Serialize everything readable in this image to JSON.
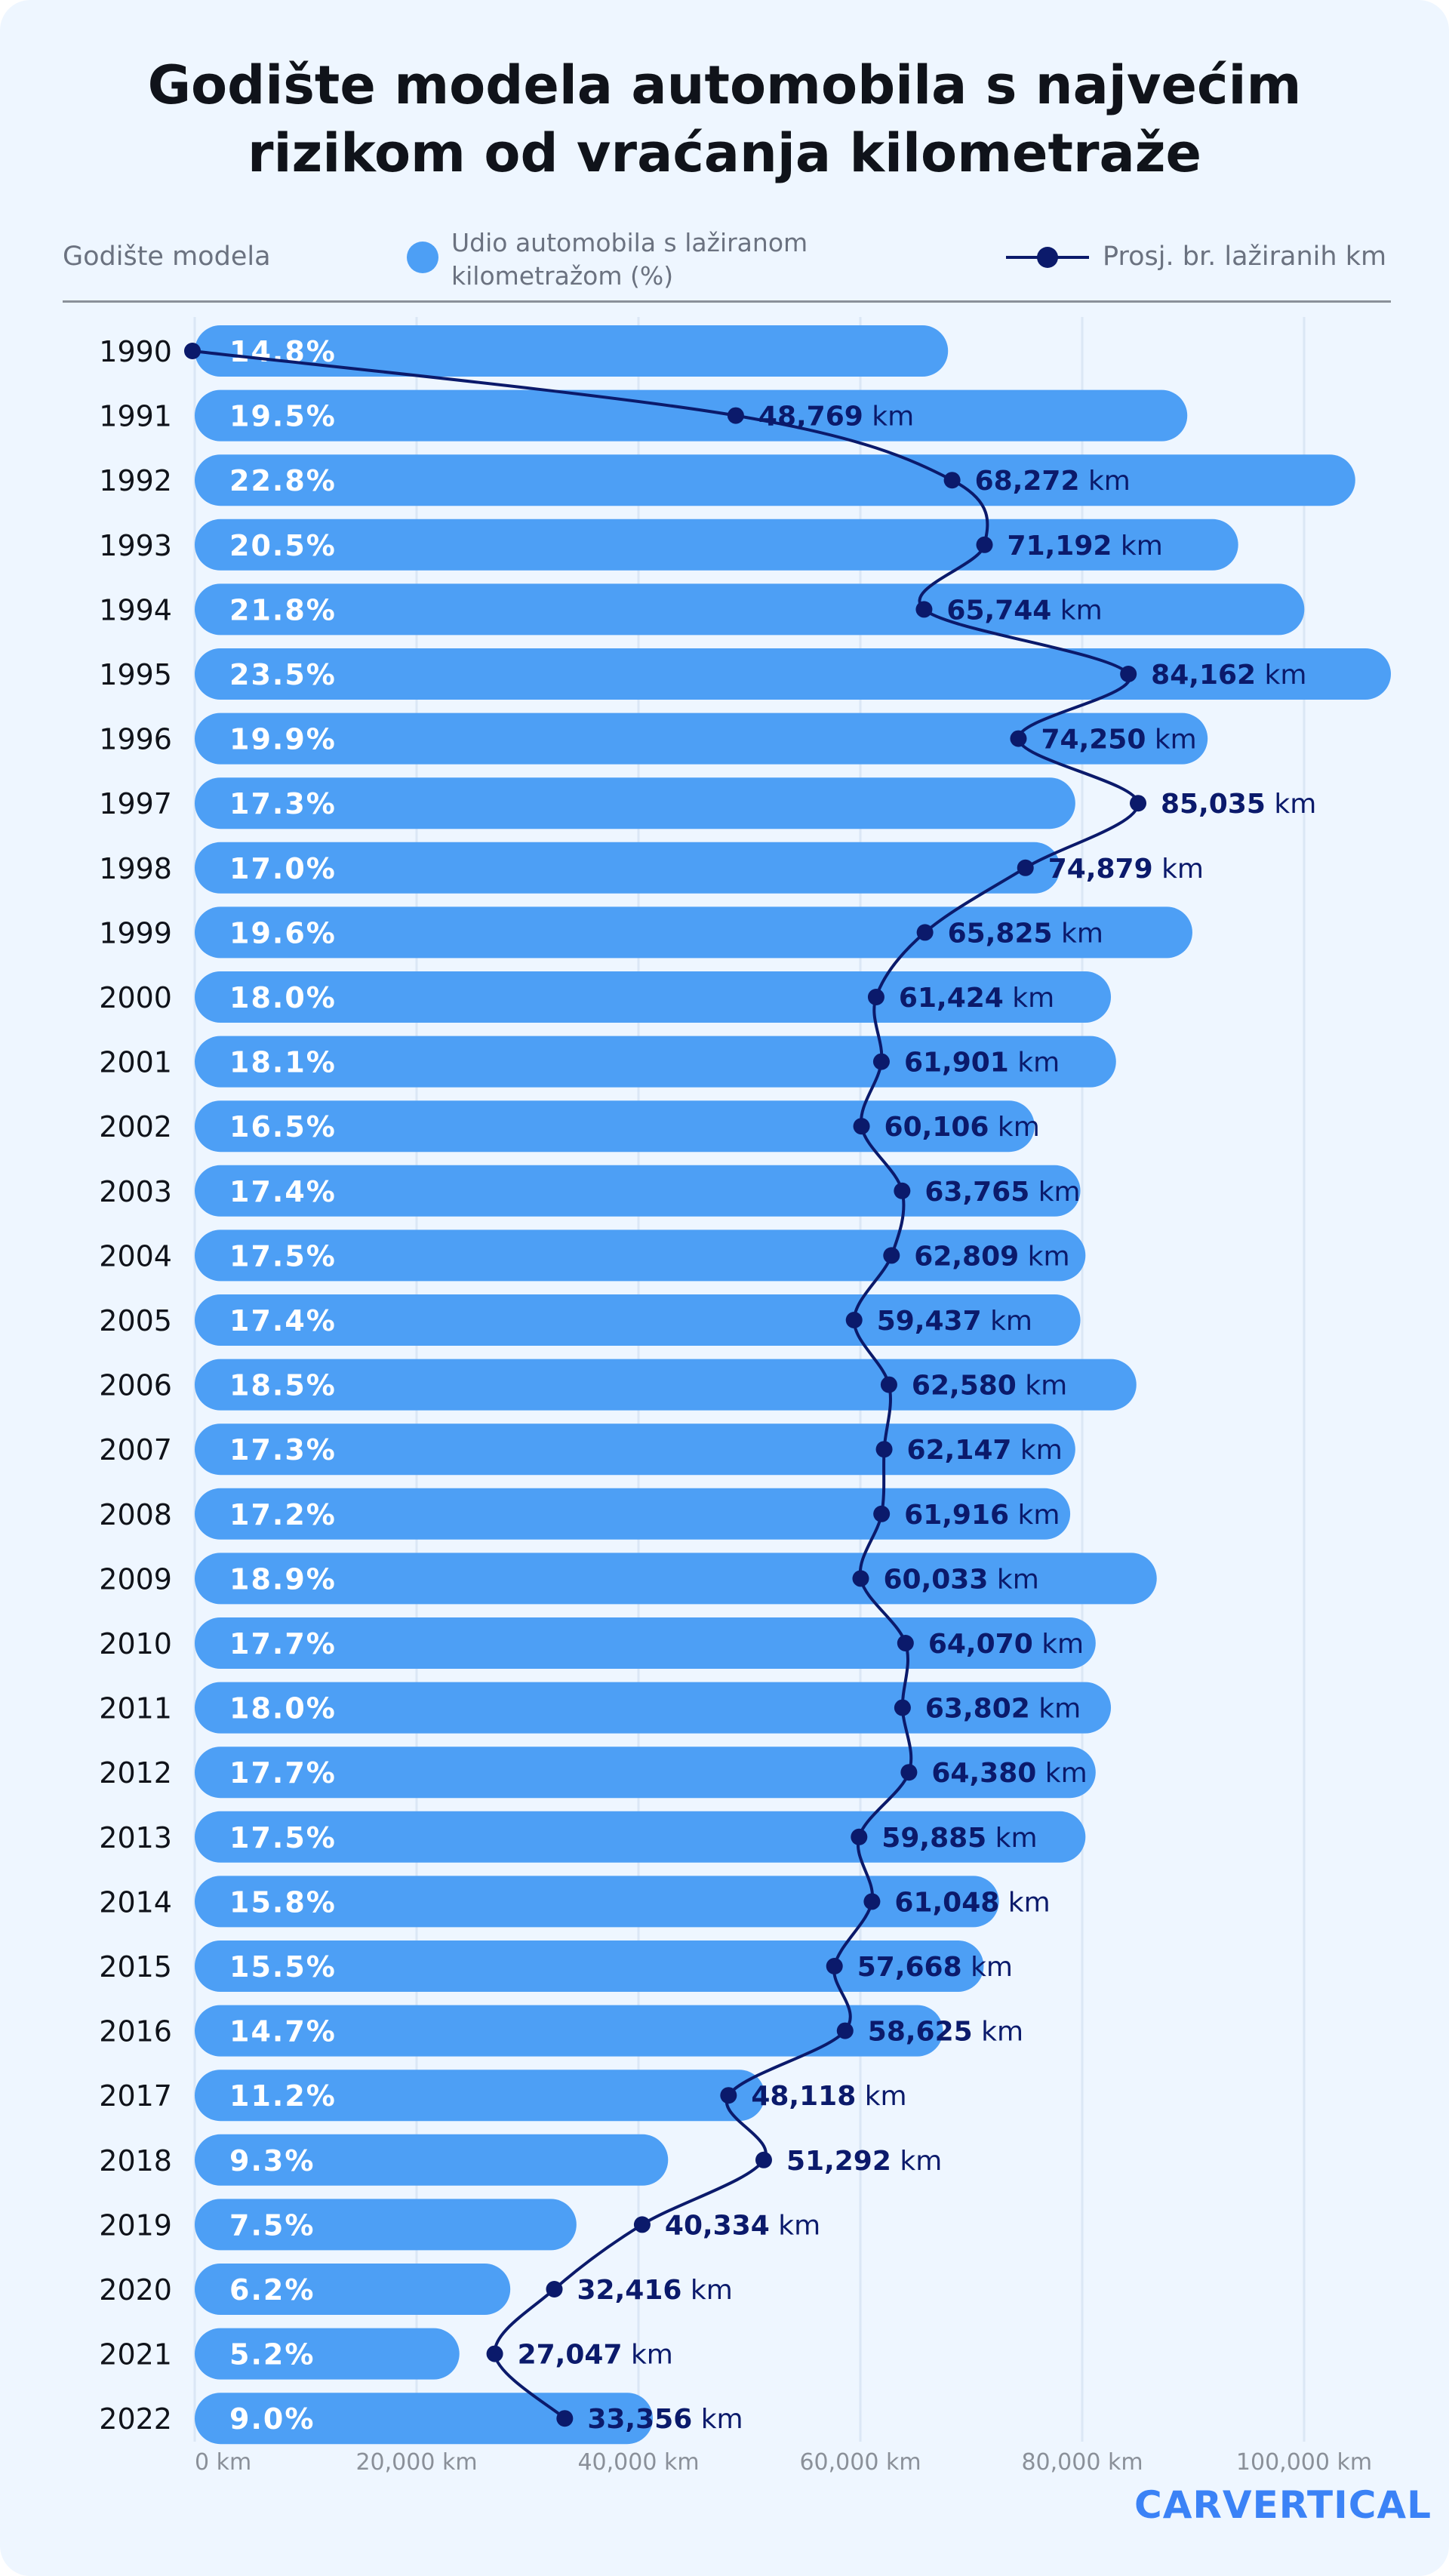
{
  "title_line1": "Godište modela automobila s najvećim",
  "title_line2": "rizikom od vraćanja kilometraže",
  "legend": {
    "year_label": "Godište modela",
    "bar_label_line1": "Udio automobila s lažiranom",
    "bar_label_line2": "kilometražom (%)",
    "line_label": "Prosj. br. lažiranih km"
  },
  "logo": "CARVERTICAL",
  "colors": {
    "bar": "#4d9ff5",
    "line": "#0b1a6b",
    "background": "#eef6ff",
    "grid": "#dbe7f5"
  },
  "chart_data": {
    "type": "bar",
    "orientation": "horizontal",
    "categories": [
      "1990",
      "1991",
      "1992",
      "1993",
      "1994",
      "1995",
      "1996",
      "1997",
      "1998",
      "1999",
      "2000",
      "2001",
      "2002",
      "2003",
      "2004",
      "2005",
      "2006",
      "2007",
      "2008",
      "2009",
      "2010",
      "2011",
      "2012",
      "2013",
      "2014",
      "2015",
      "2016",
      "2017",
      "2018",
      "2019",
      "2020",
      "2021",
      "2022"
    ],
    "series": [
      {
        "name": "Udio automobila s lažiranom kilometražom (%)",
        "type": "bar",
        "values": [
          14.8,
          19.5,
          22.8,
          20.5,
          21.8,
          23.5,
          19.9,
          17.3,
          17.0,
          19.6,
          18.0,
          18.1,
          16.5,
          17.4,
          17.5,
          17.4,
          18.5,
          17.3,
          17.2,
          18.9,
          17.7,
          18.0,
          17.7,
          17.5,
          15.8,
          15.5,
          14.7,
          11.2,
          9.3,
          7.5,
          6.2,
          5.2,
          9.0
        ],
        "labels": [
          "14.8%",
          "19.5%",
          "22.8%",
          "20.5%",
          "21.8%",
          "23.5%",
          "19.9%",
          "17.3%",
          "17.0%",
          "19.6%",
          "18.0%",
          "18.1%",
          "16.5%",
          "17.4%",
          "17.5%",
          "17.4%",
          "18.5%",
          "17.3%",
          "17.2%",
          "18.9%",
          "17.7%",
          "18.0%",
          "17.7%",
          "17.5%",
          "15.8%",
          "15.5%",
          "14.7%",
          "11.2%",
          "9.3%",
          "7.5%",
          "6.2%",
          "5.2%",
          "9.0%"
        ]
      },
      {
        "name": "Prosj. br. lažiranih km",
        "type": "line",
        "values": [
          null,
          48769,
          68272,
          71192,
          65744,
          84162,
          74250,
          85035,
          74879,
          65825,
          61424,
          61901,
          60106,
          63765,
          62809,
          59437,
          62580,
          62147,
          61916,
          60033,
          64070,
          63802,
          64380,
          59885,
          61048,
          57668,
          58625,
          48118,
          51292,
          40334,
          32416,
          27047,
          33356
        ],
        "labels": [
          "",
          "48,769",
          "68,272",
          "71,192",
          "65,744",
          "84,162",
          "74,250",
          "85,035",
          "74,879",
          "65,825",
          "61,424",
          "61,901",
          "60,106",
          "63,765",
          "62,809",
          "59,437",
          "62,580",
          "62,147",
          "61,916",
          "60,033",
          "64,070",
          "63,802",
          "64,380",
          "59,885",
          "61,048",
          "57,668",
          "58,625",
          "48,118",
          "51,292",
          "40,334",
          "32,416",
          "27,047",
          "33,356"
        ],
        "unit": "km"
      }
    ],
    "xlim": [
      0,
      108000
    ],
    "x_ticks": [
      "0 km",
      "20,000 km",
      "40,000 km",
      "60,000 km",
      "80,000 km",
      "100,000 km"
    ],
    "x_tick_values": [
      0,
      20000,
      40000,
      60000,
      80000,
      100000
    ],
    "grid": true
  }
}
